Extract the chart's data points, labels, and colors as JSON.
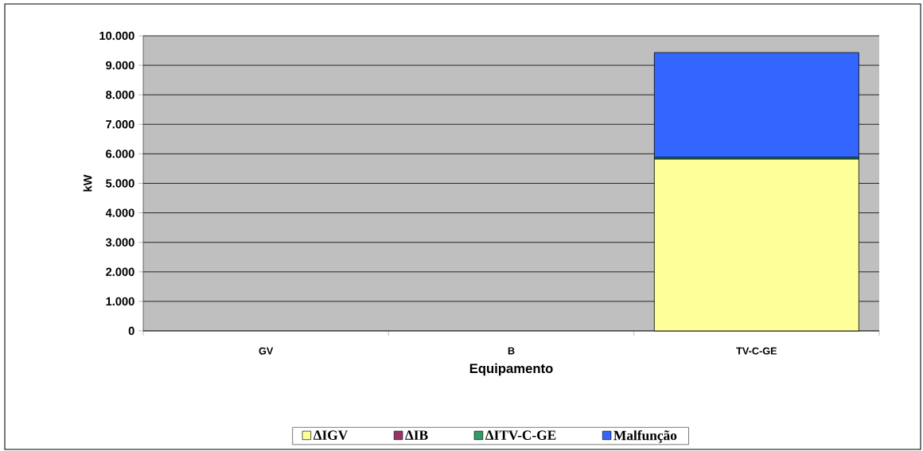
{
  "chart_data": {
    "type": "bar",
    "stacked": true,
    "xlabel": "Equipamento",
    "ylabel": "kW",
    "categories": [
      "GV",
      "B",
      "TV-C-GE"
    ],
    "series": [
      {
        "name": "ΔIGV",
        "color": "#ffff99",
        "values": [
          0,
          0,
          5820
        ]
      },
      {
        "name": "ΔIB",
        "color": "#993366",
        "values": [
          0,
          0,
          0
        ]
      },
      {
        "name": "ΔITV-C-GE",
        "color": "#339966",
        "values": [
          0,
          0,
          60
        ]
      },
      {
        "name": "Malfunção",
        "color": "#3366ff",
        "values": [
          0,
          0,
          3550
        ]
      }
    ],
    "ylim": [
      0,
      10000
    ],
    "yticks": [
      {
        "value": 0,
        "label": "0"
      },
      {
        "value": 1000,
        "label": "1.000"
      },
      {
        "value": 2000,
        "label": "2.000"
      },
      {
        "value": 3000,
        "label": "3.000"
      },
      {
        "value": 4000,
        "label": "4.000"
      },
      {
        "value": 5000,
        "label": "5.000"
      },
      {
        "value": 6000,
        "label": "6.000"
      },
      {
        "value": 7000,
        "label": "7.000"
      },
      {
        "value": 8000,
        "label": "8.000"
      },
      {
        "value": 9000,
        "label": "9.000"
      },
      {
        "value": 10000,
        "label": "10.000"
      }
    ],
    "grid": "y",
    "legend": "bottom"
  }
}
